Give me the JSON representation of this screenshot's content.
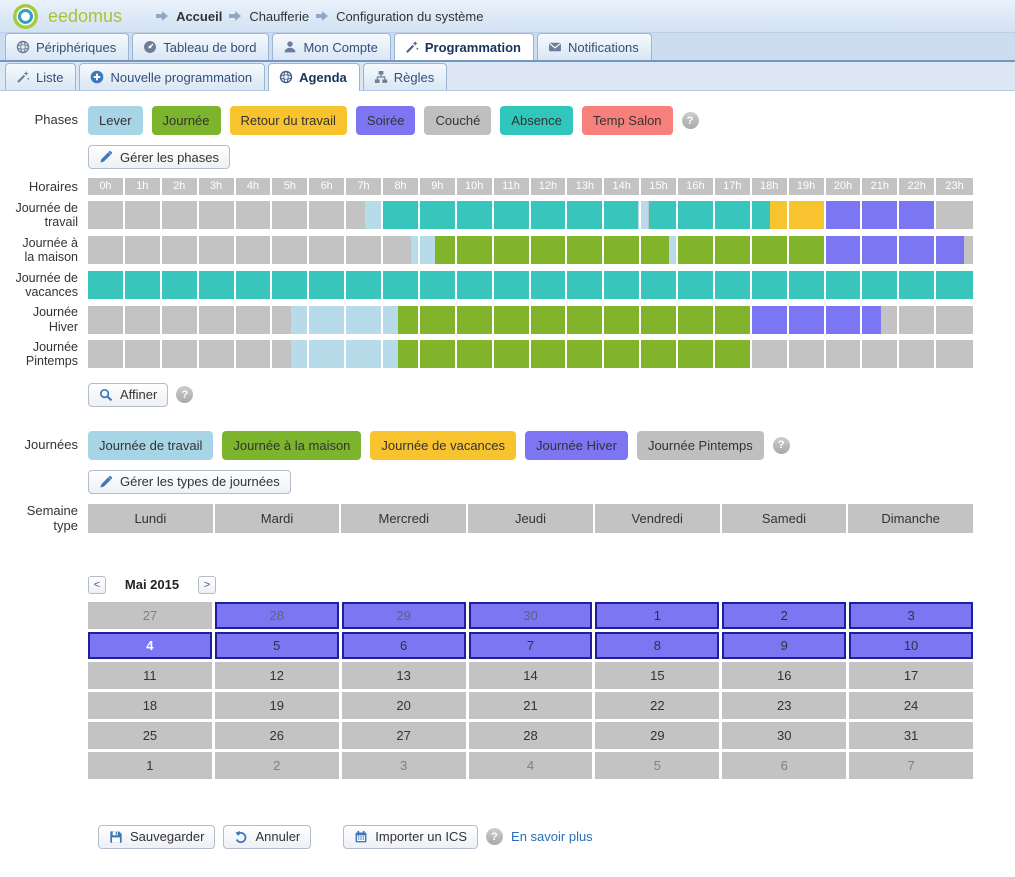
{
  "header": {
    "logo": "eedomus",
    "breadcrumb": [
      {
        "label": "Accueil",
        "bold": true
      },
      {
        "label": "Chaufferie",
        "bold": false
      },
      {
        "label": "Configuration du système",
        "bold": false
      }
    ]
  },
  "main_tabs": [
    {
      "label": "Périphériques",
      "icon": "sphere",
      "active": false
    },
    {
      "label": "Tableau de bord",
      "icon": "gauge",
      "active": false
    },
    {
      "label": "Mon Compte",
      "icon": "user",
      "active": false
    },
    {
      "label": "Programmation",
      "icon": "wand",
      "active": true
    },
    {
      "label": "Notifications",
      "icon": "envelope",
      "active": false
    }
  ],
  "sub_tabs": [
    {
      "label": "Liste",
      "icon": "wand",
      "active": false
    },
    {
      "label": "Nouvelle programmation",
      "icon": "plus",
      "active": false
    },
    {
      "label": "Agenda",
      "icon": "sphere",
      "active": true
    },
    {
      "label": "Règles",
      "icon": "tree",
      "active": false
    }
  ],
  "phases": {
    "label": "Phases",
    "items": [
      {
        "label": "Lever",
        "color": "#a7d5e6"
      },
      {
        "label": "Journée",
        "color": "#7cb42e"
      },
      {
        "label": "Retour du travail",
        "color": "#f7c32e"
      },
      {
        "label": "Soirée",
        "color": "#7d75f2"
      },
      {
        "label": "Couché",
        "color": "#bfbfbf"
      },
      {
        "label": "Absence",
        "color": "#30c6bc"
      },
      {
        "label": "Temp Salon",
        "color": "#f8807c"
      }
    ],
    "manage_label": "Gérer les phases"
  },
  "timeline": {
    "label": "Horaires",
    "hours": [
      "0h",
      "1h",
      "2h",
      "3h",
      "4h",
      "5h",
      "6h",
      "7h",
      "8h",
      "9h",
      "10h",
      "11h",
      "12h",
      "13h",
      "14h",
      "15h",
      "16h",
      "17h",
      "18h",
      "19h",
      "20h",
      "21h",
      "22h",
      "23h"
    ],
    "rows": [
      {
        "label": "Journée de travail",
        "segments": [
          {
            "color": "gray",
            "start": 0,
            "end": 7.5
          },
          {
            "color": "lightblue",
            "start": 7.5,
            "end": 8
          },
          {
            "color": "teal",
            "start": 8,
            "end": 14.92
          },
          {
            "color": "lightblue",
            "start": 14.92,
            "end": 15.2
          },
          {
            "color": "teal",
            "start": 15.2,
            "end": 18.5
          },
          {
            "color": "yellow",
            "start": 18.5,
            "end": 20
          },
          {
            "color": "purple",
            "start": 20,
            "end": 23
          },
          {
            "color": "gray",
            "start": 23,
            "end": 24
          }
        ]
      },
      {
        "label": "Journée à la maison",
        "segments": [
          {
            "color": "gray",
            "start": 0,
            "end": 8.75
          },
          {
            "color": "lightblue",
            "start": 8.75,
            "end": 9.4
          },
          {
            "color": "green",
            "start": 9.4,
            "end": 15.75
          },
          {
            "color": "lightblue",
            "start": 15.75,
            "end": 16
          },
          {
            "color": "green",
            "start": 16,
            "end": 20
          },
          {
            "color": "purple",
            "start": 20,
            "end": 23.75
          },
          {
            "color": "gray",
            "start": 23.75,
            "end": 24
          }
        ]
      },
      {
        "label": "Journée de vacances",
        "segments": [
          {
            "color": "teal",
            "start": 0,
            "end": 24
          }
        ]
      },
      {
        "label": "Journée Hiver",
        "segments": [
          {
            "color": "gray",
            "start": 0,
            "end": 5.5
          },
          {
            "color": "lightblue",
            "start": 5.5,
            "end": 8.4
          },
          {
            "color": "green",
            "start": 8.4,
            "end": 18
          },
          {
            "color": "purple",
            "start": 18,
            "end": 21.5
          },
          {
            "color": "gray",
            "start": 21.5,
            "end": 24
          }
        ]
      },
      {
        "label": "Journée Pintemps",
        "segments": [
          {
            "color": "gray",
            "start": 0,
            "end": 5.5
          },
          {
            "color": "lightblue",
            "start": 5.5,
            "end": 8.4
          },
          {
            "color": "green",
            "start": 8.4,
            "end": 18
          },
          {
            "color": "gray",
            "start": 18,
            "end": 24
          }
        ]
      }
    ]
  },
  "affiner": {
    "label": "Affiner"
  },
  "journees": {
    "label": "Journées",
    "items": [
      {
        "label": "Journée de travail",
        "color": "#a7d5e6"
      },
      {
        "label": "Journée à la maison",
        "color": "#7cb42e"
      },
      {
        "label": "Journée de vacances",
        "color": "#f7c32e"
      },
      {
        "label": "Journée Hiver",
        "color": "#7d75f2"
      },
      {
        "label": "Journée Pintemps",
        "color": "#bfbfbf"
      }
    ],
    "manage_label": "Gérer les types de journées"
  },
  "semaine": {
    "label": "Semaine type",
    "days": [
      "Lundi",
      "Mardi",
      "Mercredi",
      "Jeudi",
      "Vendredi",
      "Samedi",
      "Dimanche"
    ]
  },
  "calendar": {
    "prev": "<",
    "next": ">",
    "title": "Mai 2015",
    "rows": [
      [
        {
          "day": "27",
          "variant": "gray",
          "muted": true
        },
        {
          "day": "28",
          "variant": "purple",
          "muted": true
        },
        {
          "day": "29",
          "variant": "purple",
          "muted": true
        },
        {
          "day": "30",
          "variant": "purple",
          "muted": true
        },
        {
          "day": "1",
          "variant": "purple"
        },
        {
          "day": "2",
          "variant": "purple"
        },
        {
          "day": "3",
          "variant": "purple"
        }
      ],
      [
        {
          "day": "4",
          "variant": "purple",
          "selected": true
        },
        {
          "day": "5",
          "variant": "purple"
        },
        {
          "day": "6",
          "variant": "purple"
        },
        {
          "day": "7",
          "variant": "purple"
        },
        {
          "day": "8",
          "variant": "purple"
        },
        {
          "day": "9",
          "variant": "purple"
        },
        {
          "day": "10",
          "variant": "purple"
        }
      ],
      [
        {
          "day": "11",
          "variant": "gray"
        },
        {
          "day": "12",
          "variant": "gray"
        },
        {
          "day": "13",
          "variant": "gray"
        },
        {
          "day": "14",
          "variant": "gray"
        },
        {
          "day": "15",
          "variant": "gray"
        },
        {
          "day": "16",
          "variant": "gray"
        },
        {
          "day": "17",
          "variant": "gray"
        }
      ],
      [
        {
          "day": "18",
          "variant": "gray"
        },
        {
          "day": "19",
          "variant": "gray"
        },
        {
          "day": "20",
          "variant": "gray"
        },
        {
          "day": "21",
          "variant": "gray"
        },
        {
          "day": "22",
          "variant": "gray"
        },
        {
          "day": "23",
          "variant": "gray"
        },
        {
          "day": "24",
          "variant": "gray"
        }
      ],
      [
        {
          "day": "25",
          "variant": "gray"
        },
        {
          "day": "26",
          "variant": "gray"
        },
        {
          "day": "27",
          "variant": "gray"
        },
        {
          "day": "28",
          "variant": "gray"
        },
        {
          "day": "29",
          "variant": "gray"
        },
        {
          "day": "30",
          "variant": "gray"
        },
        {
          "day": "31",
          "variant": "gray"
        }
      ],
      [
        {
          "day": "1",
          "variant": "gray"
        },
        {
          "day": "2",
          "variant": "gray",
          "muted": true
        },
        {
          "day": "3",
          "variant": "gray",
          "muted": true
        },
        {
          "day": "4",
          "variant": "gray",
          "muted": true
        },
        {
          "day": "5",
          "variant": "gray",
          "muted": true
        },
        {
          "day": "6",
          "variant": "gray",
          "muted": true
        },
        {
          "day": "7",
          "variant": "gray",
          "muted": true
        }
      ]
    ]
  },
  "footer": {
    "save": "Sauvegarder",
    "cancel": "Annuler",
    "import_ics": "Importer un ICS",
    "more": "En savoir plus"
  },
  "icons": {
    "help": "?"
  },
  "colors": {
    "segment_gray": "#c3c3c3",
    "segment_lightblue": "#b7dbe9",
    "segment_teal": "#38c6bc",
    "segment_green": "#81b42a",
    "segment_yellow": "#f7c32e",
    "segment_purple": "#7d76f2",
    "calendar_purple": "#7d76f2",
    "calendar_border": "#1f1f9e",
    "link_blue": "#2a6db8",
    "icon_blue": "#3d77bb"
  }
}
